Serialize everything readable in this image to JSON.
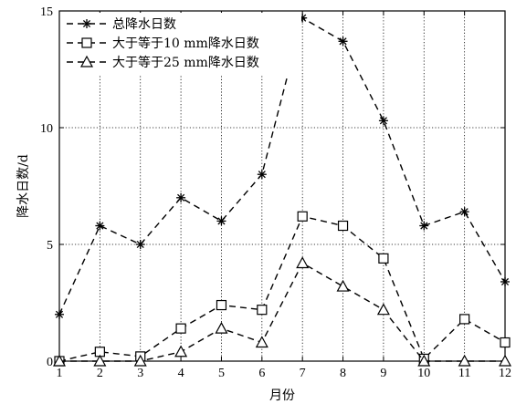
{
  "chart_data": {
    "type": "line",
    "xlabel": "月份",
    "ylabel": "降水日数/d",
    "x": [
      1,
      2,
      3,
      4,
      5,
      6,
      7,
      8,
      9,
      10,
      11,
      12
    ],
    "xlim": [
      1,
      12
    ],
    "ylim": [
      0,
      15
    ],
    "xticks": [
      "1",
      "2",
      "3",
      "4",
      "5",
      "6",
      "7",
      "8",
      "9",
      "10",
      "11",
      "12"
    ],
    "yticks": [
      "0",
      "5",
      "10",
      "15"
    ],
    "grid": true,
    "legend_position": "top-left",
    "series": [
      {
        "name": "总降水日数",
        "marker": "asterisk",
        "line_style": "dashed",
        "values": [
          2.0,
          5.8,
          5.0,
          7.0,
          6.0,
          8.0,
          14.7,
          13.7,
          10.3,
          5.8,
          6.4,
          3.4
        ]
      },
      {
        "name": "大于等于10 mm降水日数",
        "marker": "square",
        "line_style": "dashed",
        "values": [
          0.0,
          0.4,
          0.2,
          1.4,
          2.4,
          2.2,
          6.2,
          5.8,
          4.4,
          0.1,
          1.8,
          0.8
        ]
      },
      {
        "name": "大于等于25 mm降水日数",
        "marker": "triangle",
        "line_style": "dashed",
        "values": [
          0.0,
          0.0,
          0.0,
          0.4,
          1.4,
          0.8,
          4.2,
          3.2,
          2.2,
          0.0,
          0.0,
          0.0
        ]
      }
    ]
  }
}
